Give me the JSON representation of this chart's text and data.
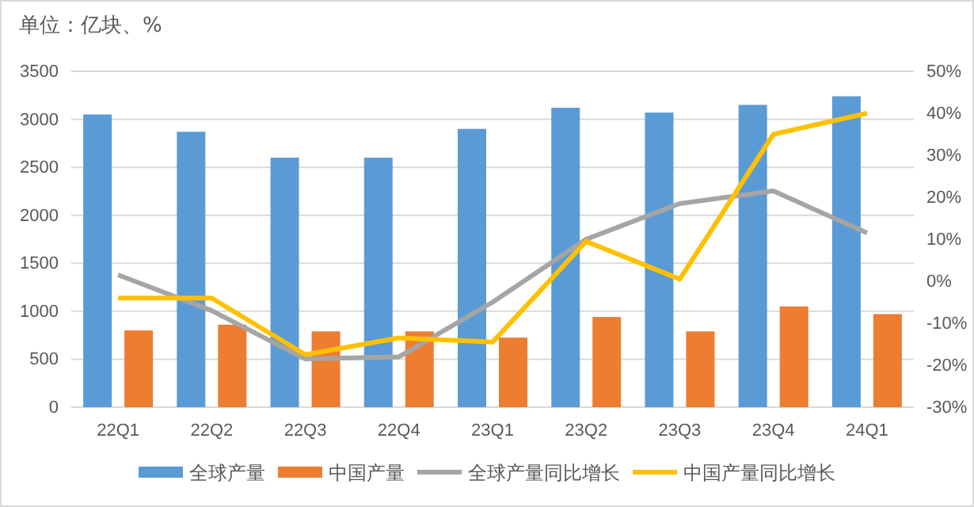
{
  "chart_data": {
    "type": "bar",
    "title": "单位：亿块、%",
    "categories": [
      "22Q1",
      "22Q2",
      "22Q3",
      "22Q4",
      "23Q1",
      "23Q2",
      "23Q3",
      "23Q4",
      "24Q1"
    ],
    "series": [
      {
        "name": "全球产量",
        "color": "#5b9bd5",
        "values": [
          3050,
          2870,
          2600,
          2600,
          2900,
          3120,
          3070,
          3150,
          3240
        ]
      },
      {
        "name": "中国产量",
        "color": "#ed7d31",
        "values": [
          800,
          860,
          790,
          790,
          725,
          940,
          790,
          1050,
          970
        ]
      },
      {
        "name": "全球产量同比增长",
        "type": "line",
        "axis": "y2",
        "color": "#a5a5a5",
        "values": [
          1.5,
          -7,
          -18.5,
          -18,
          -5,
          10,
          18.5,
          21.5,
          11.5
        ]
      },
      {
        "name": "中国产量同比增长",
        "type": "line",
        "axis": "y2",
        "color": "#ffc000",
        "values": [
          -4,
          -4,
          -17.5,
          -13.5,
          -14.5,
          9.5,
          0.5,
          35,
          40
        ]
      }
    ],
    "ylim": [
      0,
      3500
    ],
    "yticks": [
      0,
      500,
      1000,
      1500,
      2000,
      2500,
      3000,
      3500
    ],
    "y2lim": [
      -30,
      50
    ],
    "y2ticks": [
      {
        "value": -30,
        "label": "-30%"
      },
      {
        "value": -20,
        "label": "-20%"
      },
      {
        "value": -10,
        "label": "-10%"
      },
      {
        "value": 0,
        "label": "0%"
      },
      {
        "value": 10,
        "label": "10%"
      },
      {
        "value": 20,
        "label": "20%"
      },
      {
        "value": 30,
        "label": "30%"
      },
      {
        "value": 40,
        "label": "40%"
      },
      {
        "value": 50,
        "label": "50%"
      }
    ],
    "grid": "y",
    "legend": "bottom",
    "marker": "none"
  }
}
